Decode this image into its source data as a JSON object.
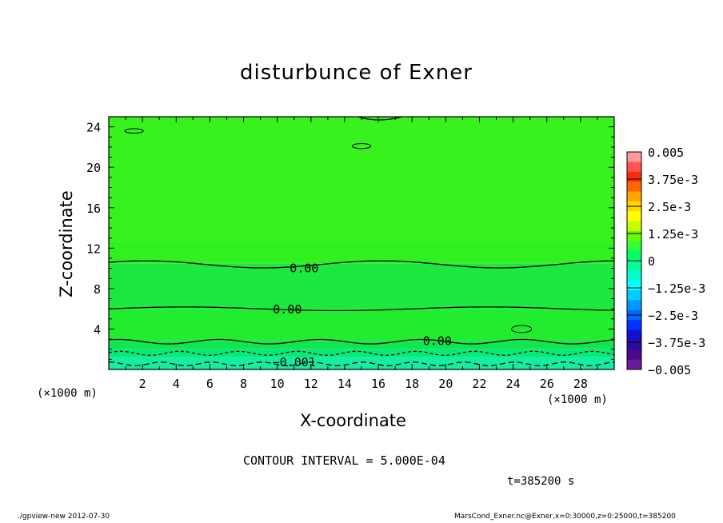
{
  "chart_data": {
    "type": "contour",
    "title": "disturbunce of Exner",
    "xlabel": "X-coordinate",
    "ylabel": "Z-coordinate",
    "x_unit": "(×1000 m)",
    "y_unit": "(×1000 m)",
    "xlim": [
      0,
      30
    ],
    "ylim": [
      0,
      25
    ],
    "xticks": [
      2,
      4,
      6,
      8,
      10,
      12,
      14,
      16,
      18,
      20,
      22,
      24,
      26,
      28
    ],
    "yticks": [
      4,
      8,
      12,
      16,
      20,
      24
    ],
    "contour_interval": "CONTOUR INTERVAL = 5.000E-04",
    "contour_labels": [
      {
        "text": "0.00",
        "x": 11.6,
        "z": 10.1
      },
      {
        "text": "0.00",
        "x": 10.6,
        "z": 6.0
      },
      {
        "text": "0.00",
        "x": 19.5,
        "z": 2.9
      },
      {
        "text": "−0.001",
        "x": 11.0,
        "z": 0.8
      }
    ],
    "colorbar": {
      "min": -0.005,
      "max": 0.005,
      "labels": [
        "0.005",
        "3.75e-3",
        "2.5e-3",
        "1.25e-3",
        "0",
        "−1.25e-3",
        "−2.5e-3",
        "−3.75e-3",
        "−0.005"
      ],
      "colors": [
        "#ff9a9a",
        "#ff5555",
        "#ff2a10",
        "#ff6600",
        "#ffa500",
        "#ffd700",
        "#ffff00",
        "#c8ff00",
        "#66ff00",
        "#33ff33",
        "#00ff66",
        "#00ff99",
        "#00ffcc",
        "#00ffff",
        "#00ccff",
        "#0099ff",
        "#0066ff",
        "#0033ff",
        "#1010d0",
        "#2a0aa0",
        "#4a0a8a",
        "#6a1a9a"
      ]
    },
    "field_bands": [
      {
        "z_from": 12.5,
        "z_to": 25,
        "color": "#38f21e"
      },
      {
        "z_from": 10.5,
        "z_to": 12.5,
        "color": "#30f020"
      },
      {
        "z_from": 6,
        "z_to": 10.5,
        "color": "#1ce840"
      },
      {
        "z_from": 2.8,
        "z_to": 6,
        "color": "#22ec30"
      },
      {
        "z_from": 2,
        "z_to": 2.8,
        "color": "#10e650"
      },
      {
        "z_from": 1.2,
        "z_to": 2,
        "color": "#08ea78"
      },
      {
        "z_from": 0,
        "z_to": 1.2,
        "color": "#14eea0"
      }
    ]
  },
  "text": {
    "title": "disturbunce of Exner",
    "xtitle": "X-coordinate",
    "ytitle": "Z-coordinate",
    "xunit_left": "(×1000 m)",
    "xunit_right": "(×1000 m)",
    "contour_interval": "CONTOUR INTERVAL = 5.000E-04",
    "time": "t=385200 s",
    "footer_left": "./gpview-new  2012-07-30",
    "footer_right": "MarsCond_Exner.nc@Exner,x=0:30000,z=0:25000,t=385200"
  }
}
